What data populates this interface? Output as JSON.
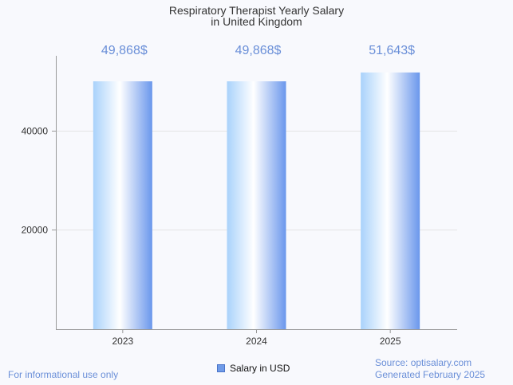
{
  "chart_data": {
    "type": "bar",
    "title": "Respiratory Therapist Yearly Salary",
    "subtitle": "in United Kingdom",
    "categories": [
      "2023",
      "2024",
      "2025"
    ],
    "values": [
      49868,
      49868,
      51643
    ],
    "value_labels": [
      "49,868$",
      "49,868$",
      "51,643$"
    ],
    "ylim": [
      0,
      55000
    ],
    "yticks": [
      20000,
      40000
    ],
    "ytick_labels": [
      "20000",
      "40000"
    ],
    "legend": "Salary in USD",
    "legend_position": "bottom",
    "grid": true
  },
  "footer": {
    "disclaimer": "For informational use only",
    "source": "Source: optisalary.com",
    "generated": "Generated February 2025"
  },
  "colors": {
    "bar_light": "#ffffff",
    "bar_dark": "#6a97ec",
    "label": "#6a8fd8",
    "axis": "#999999",
    "grid": "#e4e4e4"
  }
}
